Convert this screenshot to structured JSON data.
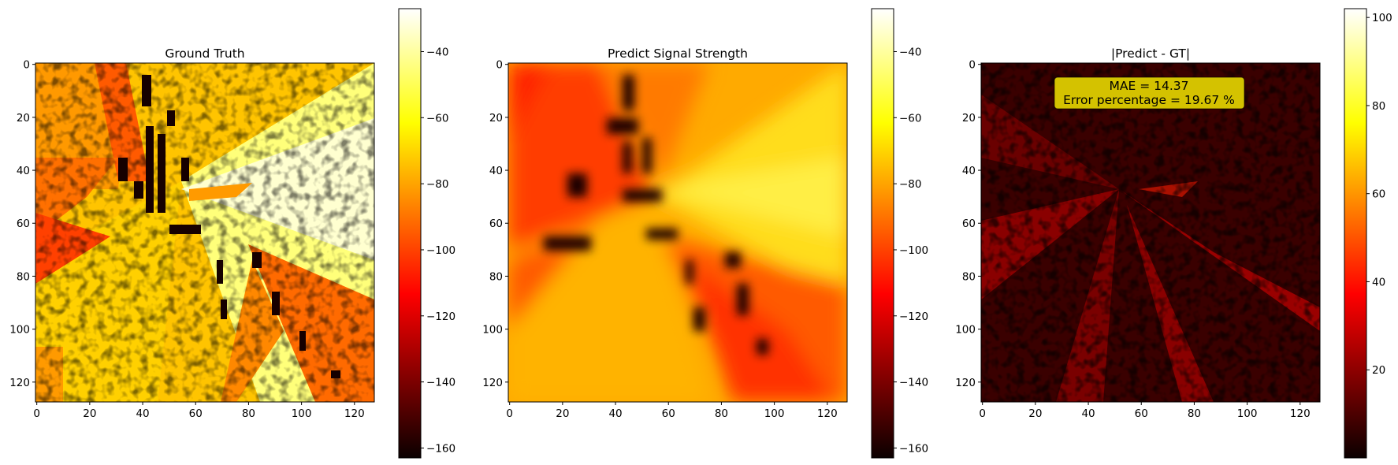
{
  "figure": {
    "panels": [
      {
        "title": "Ground Truth",
        "cbar_ticks": [
          "−40",
          "−60",
          "−80",
          "−100",
          "−120",
          "−140",
          "−160"
        ]
      },
      {
        "title": "Predict Signal Strength",
        "cbar_ticks": [
          "−40",
          "−60",
          "−80",
          "−100",
          "−120",
          "−140",
          "−160"
        ]
      },
      {
        "title": "|Predict - GT|",
        "cbar_ticks": [
          "100",
          "80",
          "60",
          "40",
          "20"
        ],
        "annotation": {
          "line1": "MAE = 14.37",
          "line2": "Error percentage = 19.67 %"
        }
      }
    ],
    "x_ticks": [
      "0",
      "20",
      "40",
      "60",
      "80",
      "100",
      "120"
    ],
    "y_ticks": [
      "0",
      "20",
      "40",
      "60",
      "80",
      "100",
      "120"
    ]
  },
  "chart_data": [
    {
      "type": "heatmap",
      "title": "Ground Truth",
      "colormap": "hot",
      "xlim": [
        0,
        128
      ],
      "ylim": [
        128,
        0
      ],
      "x_ticks": [
        0,
        20,
        40,
        60,
        80,
        100,
        120
      ],
      "y_ticks": [
        0,
        20,
        40,
        60,
        80,
        100,
        120
      ],
      "colorbar": {
        "range": [
          -163,
          -27
        ],
        "ticks": [
          -40,
          -60,
          -80,
          -100,
          -120,
          -140,
          -160
        ]
      }
    },
    {
      "type": "heatmap",
      "title": "Predict Signal Strength",
      "colormap": "hot",
      "xlim": [
        0,
        128
      ],
      "ylim": [
        128,
        0
      ],
      "x_ticks": [
        0,
        20,
        40,
        60,
        80,
        100,
        120
      ],
      "y_ticks": [
        0,
        20,
        40,
        60,
        80,
        100,
        120
      ],
      "colorbar": {
        "range": [
          -163,
          -27
        ],
        "ticks": [
          -40,
          -60,
          -80,
          -100,
          -120,
          -140,
          -160
        ]
      }
    },
    {
      "type": "heatmap",
      "title": "|Predict - GT|",
      "colormap": "hot",
      "xlim": [
        0,
        128
      ],
      "ylim": [
        128,
        0
      ],
      "x_ticks": [
        0,
        20,
        40,
        60,
        80,
        100,
        120
      ],
      "y_ticks": [
        0,
        20,
        40,
        60,
        80,
        100,
        120
      ],
      "colorbar": {
        "range": [
          0,
          102
        ],
        "ticks": [
          100,
          80,
          60,
          40,
          20
        ]
      },
      "annotation": {
        "MAE": 14.37,
        "error_percentage": 19.67
      }
    }
  ]
}
